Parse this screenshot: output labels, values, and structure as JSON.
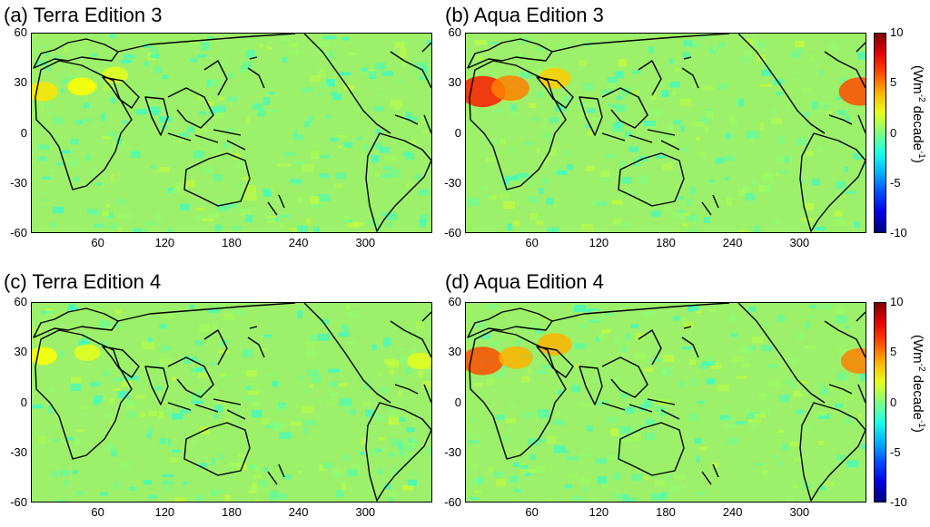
{
  "chart_data": [
    {
      "type": "heatmap",
      "title": "(a) Terra Edition 3",
      "x_ticks": [
        60,
        120,
        180,
        240,
        300
      ],
      "y_ticks": [
        60,
        30,
        0,
        -30,
        -60
      ],
      "xlim": [
        0,
        360
      ],
      "ylim": [
        -60,
        60
      ],
      "hotspots": [
        {
          "lon": 10,
          "lat": 25,
          "value": 3
        },
        {
          "lon": 45,
          "lat": 28,
          "value": 2.5
        },
        {
          "lon": 75,
          "lat": 35,
          "value": 2
        }
      ]
    },
    {
      "type": "heatmap",
      "title": "(b) Aqua Edition 3",
      "x_ticks": [
        60,
        120,
        180,
        240,
        300
      ],
      "y_ticks": [
        60,
        30,
        0,
        -30,
        -60
      ],
      "xlim": [
        0,
        360
      ],
      "ylim": [
        -60,
        60
      ],
      "hotspots": [
        {
          "lon": 15,
          "lat": 25,
          "value": 7
        },
        {
          "lon": 40,
          "lat": 27,
          "value": 5
        },
        {
          "lon": 80,
          "lat": 33,
          "value": 3.5
        },
        {
          "lon": 355,
          "lat": 25,
          "value": 6
        }
      ]
    },
    {
      "type": "heatmap",
      "title": "(c) Terra Edition 4",
      "x_ticks": [
        60,
        120,
        180,
        240,
        300
      ],
      "y_ticks": [
        60,
        30,
        0,
        -30,
        -60
      ],
      "xlim": [
        0,
        360
      ],
      "ylim": [
        -60,
        60
      ],
      "hotspots": [
        {
          "lon": 10,
          "lat": 28,
          "value": 2.5
        },
        {
          "lon": 50,
          "lat": 30,
          "value": 2
        },
        {
          "lon": 350,
          "lat": 25,
          "value": 2
        }
      ]
    },
    {
      "type": "heatmap",
      "title": "(d) Aqua Edition 4",
      "x_ticks": [
        60,
        120,
        180,
        240,
        300
      ],
      "y_ticks": [
        60,
        30,
        0,
        -30,
        -60
      ],
      "xlim": [
        0,
        360
      ],
      "ylim": [
        -60,
        60
      ],
      "hotspots": [
        {
          "lon": 15,
          "lat": 25,
          "value": 6
        },
        {
          "lon": 45,
          "lat": 27,
          "value": 4
        },
        {
          "lon": 80,
          "lat": 35,
          "value": 4
        },
        {
          "lon": 355,
          "lat": 25,
          "value": 5
        }
      ]
    }
  ],
  "colorbar": {
    "ticks": [
      10,
      5,
      0,
      -5,
      -10
    ],
    "range": [
      -10,
      10
    ],
    "label_main": "(Wm",
    "label_sup1": "-2",
    "label_mid": " decade",
    "label_sup2": "-1",
    "label_end": ")",
    "colormap": "jet"
  },
  "colors": {
    "background_field": "#9cf06a",
    "coastline": "#000000"
  }
}
